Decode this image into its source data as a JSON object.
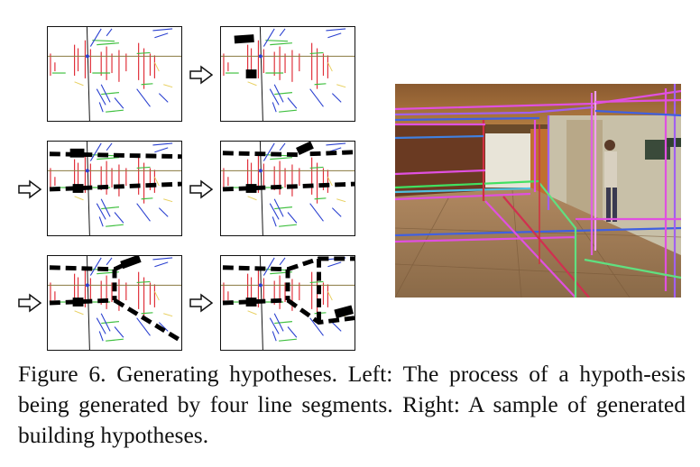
{
  "figure": {
    "caption": "Figure 6. Generating hypotheses. Left: The process of a hypoth-esis being generated by four line segments. Right: A sample of generated building hypotheses."
  },
  "left_grid": {
    "panels": [
      {
        "step": 1,
        "arrow": false
      },
      {
        "step": 2,
        "arrow": true
      },
      {
        "step": 3,
        "arrow": true
      },
      {
        "step": 4,
        "arrow": true
      },
      {
        "step": 5,
        "arrow": true
      },
      {
        "step": 6,
        "arrow": true
      }
    ]
  },
  "colors": {
    "red": "#e0303a",
    "green": "#40c040",
    "blue": "#2a40d0",
    "yellow": "#e8d060",
    "black": "#000000",
    "photo_magenta": "#e040e0",
    "photo_green": "#40e060"
  }
}
